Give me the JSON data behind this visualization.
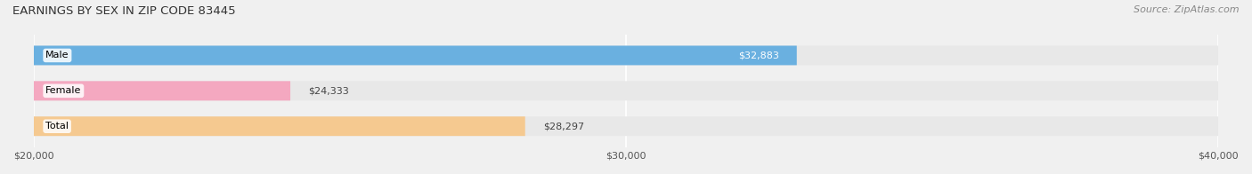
{
  "title": "EARNINGS BY SEX IN ZIP CODE 83445",
  "source": "Source: ZipAtlas.com",
  "categories": [
    "Male",
    "Female",
    "Total"
  ],
  "values": [
    32883,
    24333,
    28297
  ],
  "bar_colors": [
    "#6ab0e0",
    "#f4a8c0",
    "#f5c990"
  ],
  "label_colors": [
    "white",
    "black",
    "black"
  ],
  "label_inside": [
    true,
    false,
    false
  ],
  "xlim": [
    20000,
    40000
  ],
  "xticks": [
    20000,
    30000,
    40000
  ],
  "xtick_labels": [
    "$20,000",
    "$30,000",
    "$40,000"
  ],
  "bar_height": 0.55,
  "background_color": "#f0f0f0",
  "bar_bg_color": "#e8e8e8",
  "value_labels": [
    "$32,883",
    "$24,333",
    "$28,297"
  ]
}
